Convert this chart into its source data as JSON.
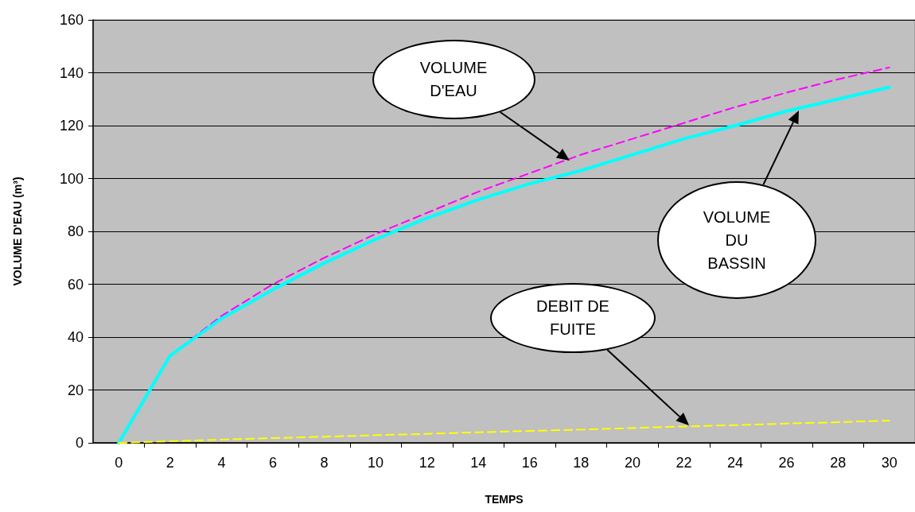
{
  "chart_data": {
    "type": "line",
    "xlabel": "TEMPS",
    "ylabel": "VOLUME D'EAU (m³)",
    "x": [
      0,
      2,
      4,
      6,
      8,
      10,
      12,
      14,
      16,
      18,
      20,
      22,
      24,
      26,
      28,
      30
    ],
    "series": [
      {
        "color": "#ff00ff",
        "line_style": "dashed",
        "values": [
          0,
          33,
          48,
          60,
          70,
          79,
          87,
          95,
          102,
          109,
          115,
          121,
          127,
          132.5,
          137.5,
          142
        ]
      },
      {
        "color": "#00ffff",
        "line_style": "solid",
        "values": [
          0,
          33,
          47,
          58,
          68,
          77,
          85,
          92,
          98,
          103,
          109,
          115,
          120,
          125.5,
          130,
          134.5
        ]
      },
      {
        "color": "#ffff00",
        "line_style": "dashed",
        "values": [
          0,
          0.6,
          1.2,
          1.8,
          2.3,
          2.9,
          3.4,
          4,
          4.5,
          5,
          5.6,
          6.2,
          6.7,
          7.3,
          7.8,
          8.4
        ]
      }
    ],
    "xlim": [
      -1,
      31
    ],
    "xticks": [
      0,
      {
        "value": 1,
        "label": null
      },
      2,
      {
        "value": 3,
        "label": null
      },
      4,
      {
        "value": 5,
        "label": null
      },
      6,
      {
        "value": 7,
        "label": null
      },
      8,
      {
        "value": 9,
        "label": null
      },
      10,
      {
        "value": 11,
        "label": null
      },
      12,
      {
        "value": 13,
        "label": null
      },
      14,
      {
        "value": 15,
        "label": null
      },
      16,
      {
        "value": 17,
        "label": null
      },
      18,
      {
        "value": 19,
        "label": null
      },
      20,
      {
        "value": 21,
        "label": null
      },
      22,
      {
        "value": 23,
        "label": null
      },
      24,
      {
        "value": 25,
        "label": null
      },
      26,
      {
        "value": 27,
        "label": null
      },
      28,
      {
        "value": 29,
        "label": null
      },
      30
    ],
    "ylim": [
      0,
      160
    ],
    "yticks": [
      0,
      20,
      40,
      60,
      80,
      100,
      120,
      140,
      160
    ],
    "grid": "y",
    "marker": "none",
    "annotations": [
      "VOLUME\nD'EAU",
      "VOLUME\nDU\nBASSIN",
      "DEBIT DE\nFUITE"
    ]
  }
}
